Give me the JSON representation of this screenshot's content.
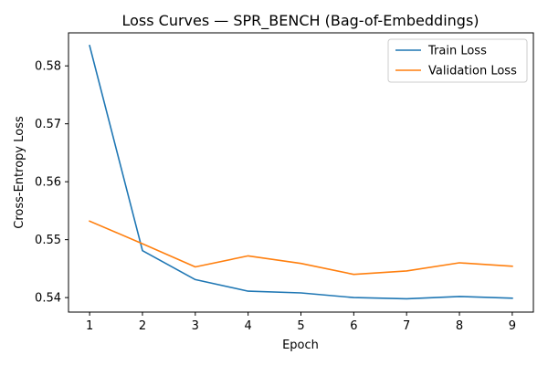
{
  "chart_data": {
    "type": "line",
    "title": "Loss Curves — SPR_BENCH (Bag-of-Embeddings)",
    "xlabel": "Epoch",
    "ylabel": "Cross-Entropy Loss",
    "x": [
      1,
      2,
      3,
      4,
      5,
      6,
      7,
      8,
      9
    ],
    "x_ticks": [
      "1",
      "2",
      "3",
      "4",
      "5",
      "6",
      "7",
      "8",
      "9"
    ],
    "y_ticks": [
      "0.54",
      "0.55",
      "0.56",
      "0.57",
      "0.58"
    ],
    "xlim": [
      0.6,
      9.4
    ],
    "ylim": [
      0.5375,
      0.5857
    ],
    "grid": false,
    "legend_position": "top-right",
    "series": [
      {
        "name": "Train Loss",
        "color": "#1f77b4",
        "values": [
          0.5835,
          0.5481,
          0.5431,
          0.5411,
          0.5408,
          0.54,
          0.5398,
          0.5402,
          0.5399
        ]
      },
      {
        "name": "Validation Loss",
        "color": "#ff7f0e",
        "values": [
          0.5532,
          0.5493,
          0.5453,
          0.5472,
          0.5459,
          0.544,
          0.5446,
          0.546,
          0.5454
        ]
      }
    ]
  }
}
